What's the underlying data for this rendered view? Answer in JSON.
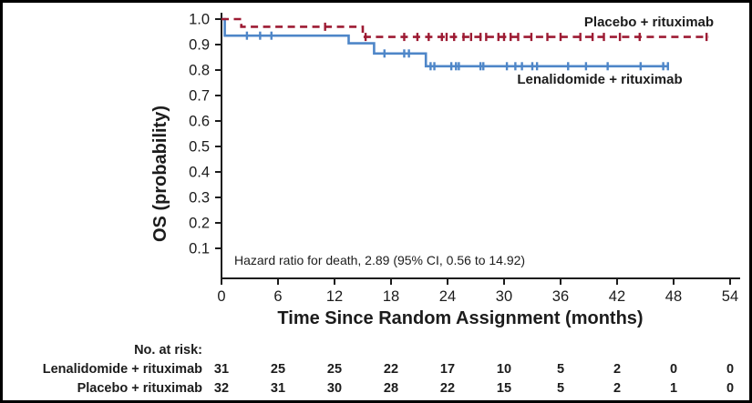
{
  "figure": {
    "background": "#ffffff",
    "border_color": "#000000"
  },
  "chart_data": {
    "type": "line",
    "subtype": "kaplan-meier-step",
    "title": "",
    "xlabel": "Time Since Random Assignment (months)",
    "ylabel": "OS (probability)",
    "x_ticks": [
      0,
      6,
      12,
      18,
      24,
      30,
      36,
      42,
      48,
      54
    ],
    "y_ticks": [
      1.0,
      0.9,
      0.8,
      0.7,
      0.6,
      0.5,
      0.4,
      0.3,
      0.2,
      0.1
    ],
    "xlim": [
      0,
      54
    ],
    "ylim": [
      0.05,
      1.02
    ],
    "grid": "off",
    "legend_position": "inline-labels",
    "annotation": "Hazard ratio for death, 2.89 (95% CI, 0.56 to 14.92)",
    "axis_color": "#1c1c1c",
    "series": [
      {
        "name": "Placebo + rituximab",
        "color": "#9d1b33",
        "style": "dashed",
        "points": [
          [
            0,
            1.0
          ],
          [
            2.1,
            0.97
          ],
          [
            15.0,
            0.93
          ],
          [
            51.7,
            0.93
          ]
        ],
        "censor_marks": [
          [
            11.0,
            0.97
          ],
          [
            15.3,
            0.93
          ],
          [
            19.4,
            0.93
          ],
          [
            20.8,
            0.93
          ],
          [
            22.0,
            0.93
          ],
          [
            23.4,
            0.93
          ],
          [
            23.9,
            0.93
          ],
          [
            24.7,
            0.93
          ],
          [
            25.7,
            0.93
          ],
          [
            26.5,
            0.93
          ],
          [
            27.5,
            0.93
          ],
          [
            28.1,
            0.93
          ],
          [
            29.4,
            0.93
          ],
          [
            30.0,
            0.93
          ],
          [
            30.7,
            0.93
          ],
          [
            31.5,
            0.93
          ],
          [
            32.9,
            0.93
          ],
          [
            34.6,
            0.93
          ],
          [
            36.0,
            0.93
          ],
          [
            38.1,
            0.93
          ],
          [
            39.4,
            0.93
          ],
          [
            40.6,
            0.93
          ],
          [
            42.3,
            0.93
          ],
          [
            44.4,
            0.93
          ],
          [
            51.5,
            0.93
          ]
        ]
      },
      {
        "name": "Lenalidomide + rituximab",
        "color": "#4e86c8",
        "style": "solid",
        "points": [
          [
            0,
            1.0
          ],
          [
            0.35,
            0.935
          ],
          [
            13.5,
            0.905
          ],
          [
            16.2,
            0.865
          ],
          [
            21.7,
            0.815
          ],
          [
            47.4,
            0.815
          ]
        ],
        "censor_marks": [
          [
            2.7,
            0.935
          ],
          [
            4.1,
            0.935
          ],
          [
            5.3,
            0.935
          ],
          [
            17.3,
            0.865
          ],
          [
            19.4,
            0.865
          ],
          [
            19.9,
            0.865
          ],
          [
            22.2,
            0.815
          ],
          [
            22.6,
            0.815
          ],
          [
            24.4,
            0.815
          ],
          [
            24.9,
            0.815
          ],
          [
            25.2,
            0.815
          ],
          [
            27.5,
            0.815
          ],
          [
            27.8,
            0.815
          ],
          [
            30.3,
            0.815
          ],
          [
            31.2,
            0.815
          ],
          [
            31.9,
            0.815
          ],
          [
            33.0,
            0.815
          ],
          [
            33.5,
            0.815
          ],
          [
            36.8,
            0.815
          ],
          [
            38.7,
            0.815
          ],
          [
            41.0,
            0.815
          ],
          [
            44.5,
            0.815
          ],
          [
            46.9,
            0.815
          ],
          [
            47.4,
            0.815
          ]
        ]
      }
    ],
    "at_risk": {
      "header": "No. at risk:",
      "times": [
        0,
        6,
        12,
        18,
        24,
        30,
        36,
        42,
        48,
        54
      ],
      "rows": [
        {
          "label": "Lenalidomide + rituximab",
          "values": [
            31,
            25,
            25,
            22,
            17,
            10,
            5,
            2,
            0,
            0
          ]
        },
        {
          "label": "Placebo + rituximab",
          "values": [
            32,
            31,
            30,
            28,
            22,
            15,
            5,
            2,
            1,
            0
          ]
        }
      ]
    }
  }
}
